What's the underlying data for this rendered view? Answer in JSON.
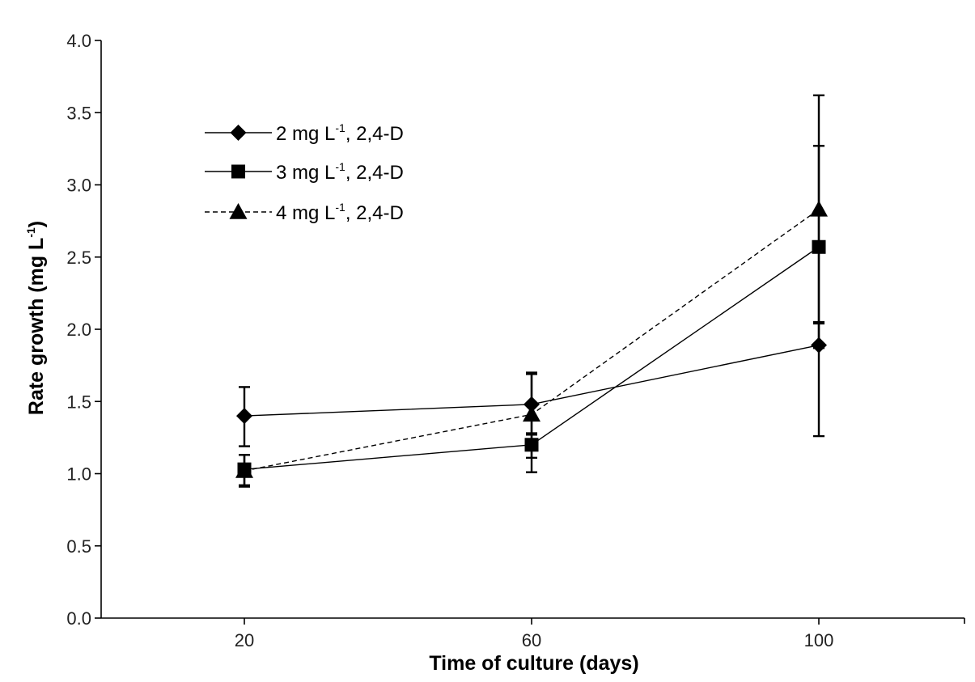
{
  "chart_data": {
    "type": "line",
    "title": "",
    "xlabel": "Time of culture (days)",
    "ylabel": "Rate growth (mg L",
    "ylabel_sup": "-1",
    "ylabel_suffix": ")",
    "categories": [
      "20",
      "60",
      "100"
    ],
    "x": [
      20,
      60,
      100
    ],
    "ylim": [
      0,
      4
    ],
    "yticks": [
      "0.0",
      "0.5",
      "1.0",
      "1.5",
      "2.0",
      "2.5",
      "3.0",
      "3.5",
      "4.0"
    ],
    "legend_position": "top-left",
    "series": [
      {
        "name": "2 mg L-1, 2,4-D",
        "label_pre": "2 mg L",
        "label_sup": "-1",
        "label_post": ", 2,4-D",
        "marker": "diamond",
        "dash": "solid",
        "values": [
          1.4,
          1.48,
          1.89
        ],
        "err_high": [
          1.6,
          1.7,
          2.05
        ],
        "err_low": [
          1.19,
          1.27,
          1.26
        ]
      },
      {
        "name": "3 mg L-1, 2,4-D",
        "label_pre": "3 mg L",
        "label_sup": "-1",
        "label_post": ", 2,4-D",
        "marker": "square",
        "dash": "solid",
        "values": [
          1.03,
          1.2,
          2.57
        ],
        "err_high": [
          1.13,
          1.28,
          3.27
        ],
        "err_low": [
          0.92,
          1.11,
          1.87
        ]
      },
      {
        "name": "4 mg L-1, 2,4-D",
        "label_pre": "4 mg L",
        "label_sup": "-1",
        "label_post": ", 2,4-D",
        "marker": "triangle",
        "dash": "dashed",
        "values": [
          1.02,
          1.41,
          2.83
        ],
        "err_high": [
          1.13,
          1.69,
          3.62
        ],
        "err_low": [
          0.91,
          1.01,
          2.04
        ]
      }
    ]
  }
}
